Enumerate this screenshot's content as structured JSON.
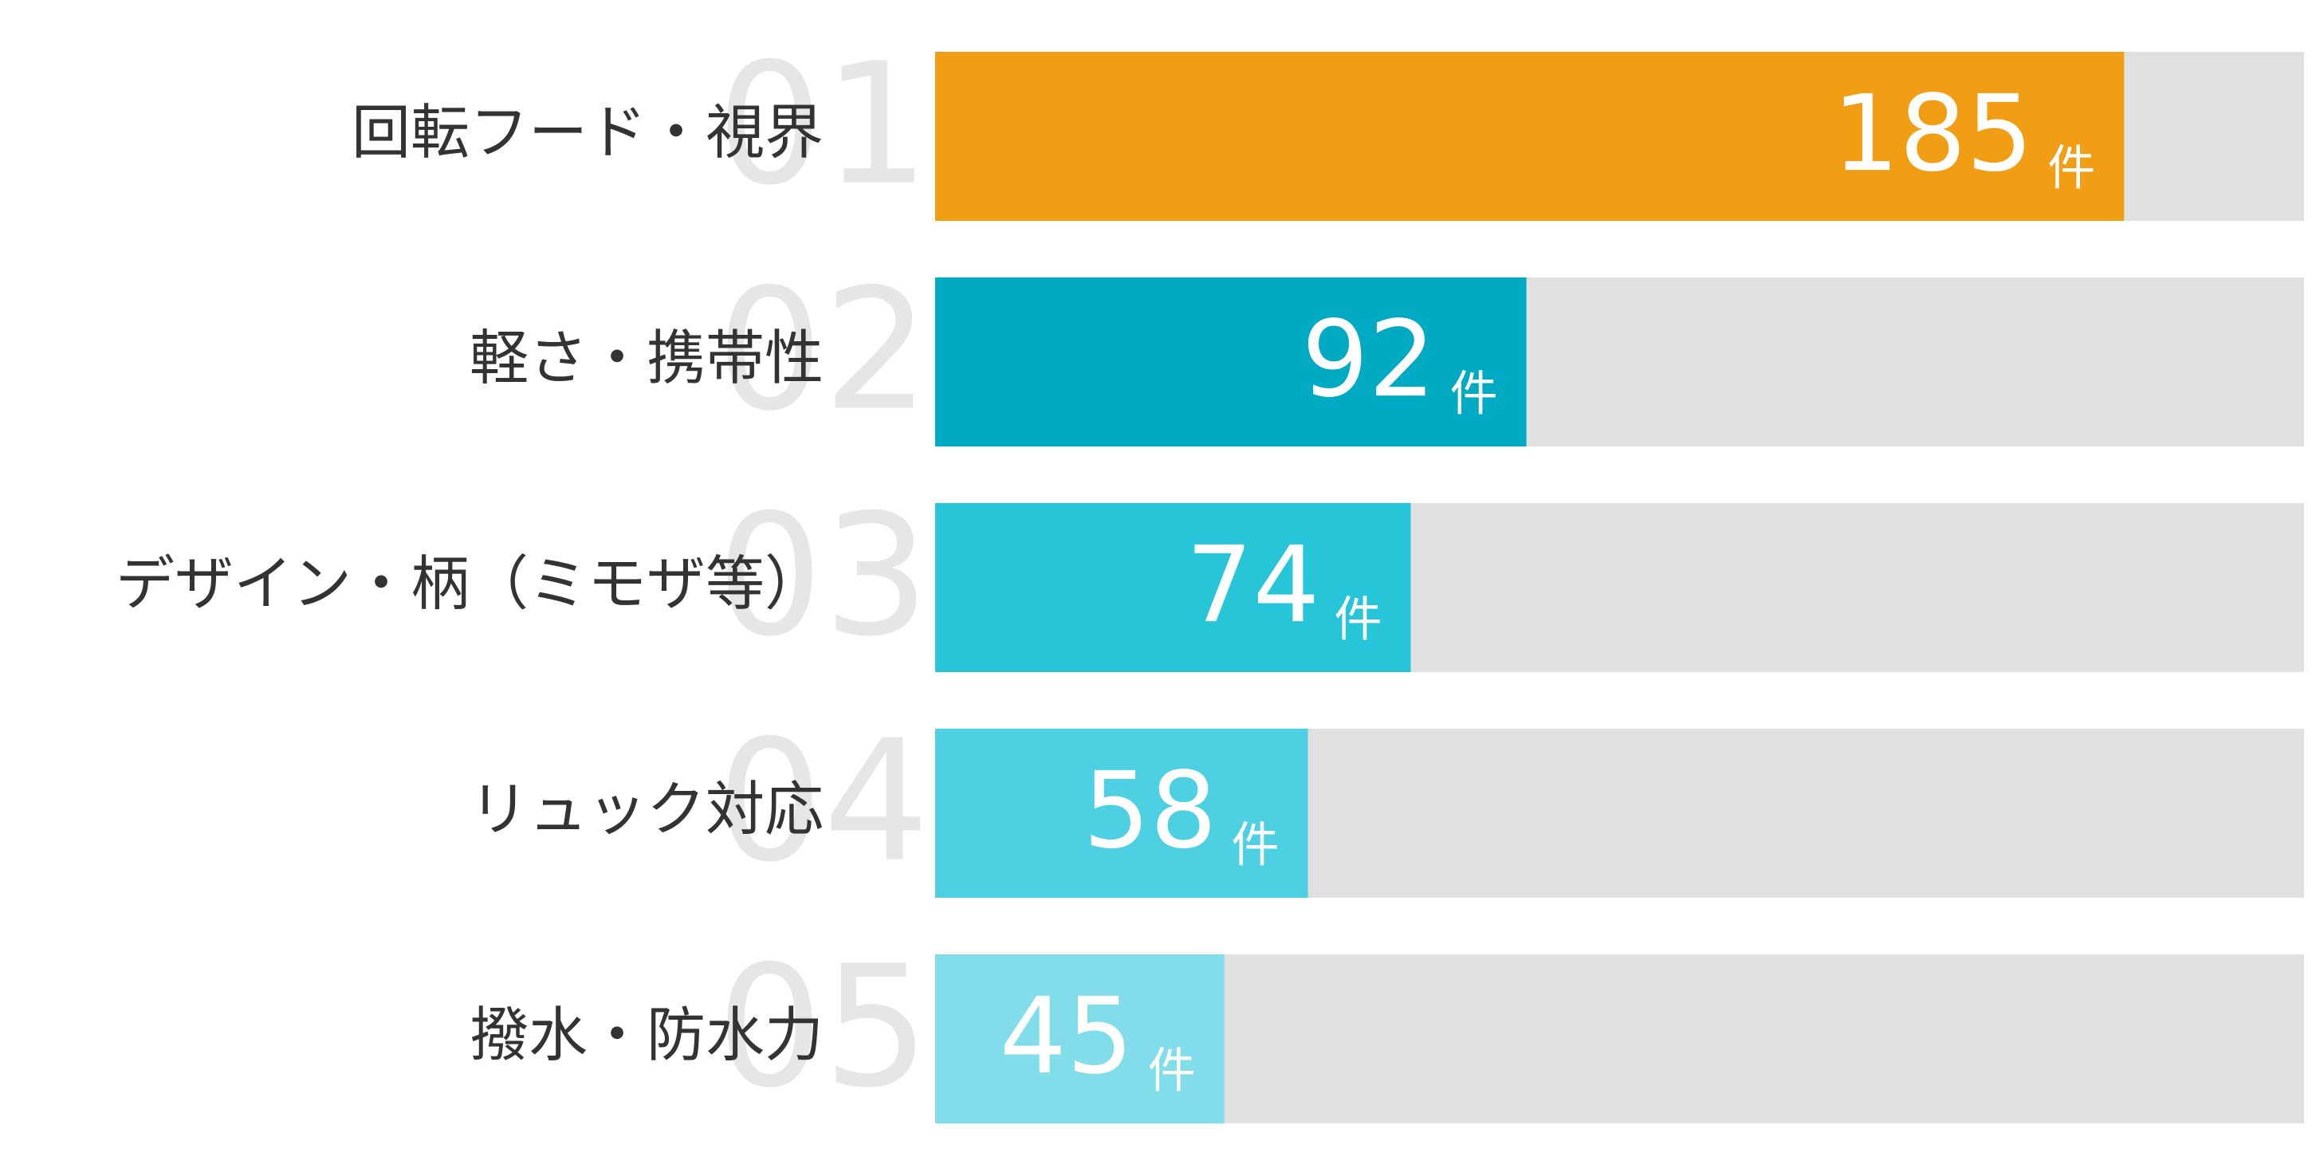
{
  "chart_data": {
    "type": "bar",
    "ranks": [
      "01",
      "02",
      "03",
      "04",
      "05"
    ],
    "categories": [
      "回転フード・視界",
      "軽さ・携帯性",
      "デザイン・柄（ミモザ等）",
      "リュック対応",
      "撥水・防水力"
    ],
    "values": [
      185,
      92,
      74,
      58,
      45
    ],
    "unit": "件",
    "colors": [
      "#f29e14",
      "#00aac3",
      "#27c5d8",
      "#4dd0e1",
      "#80dde9"
    ],
    "track_color": "#e0e0e0",
    "xlim": [
      0,
      213
    ]
  }
}
